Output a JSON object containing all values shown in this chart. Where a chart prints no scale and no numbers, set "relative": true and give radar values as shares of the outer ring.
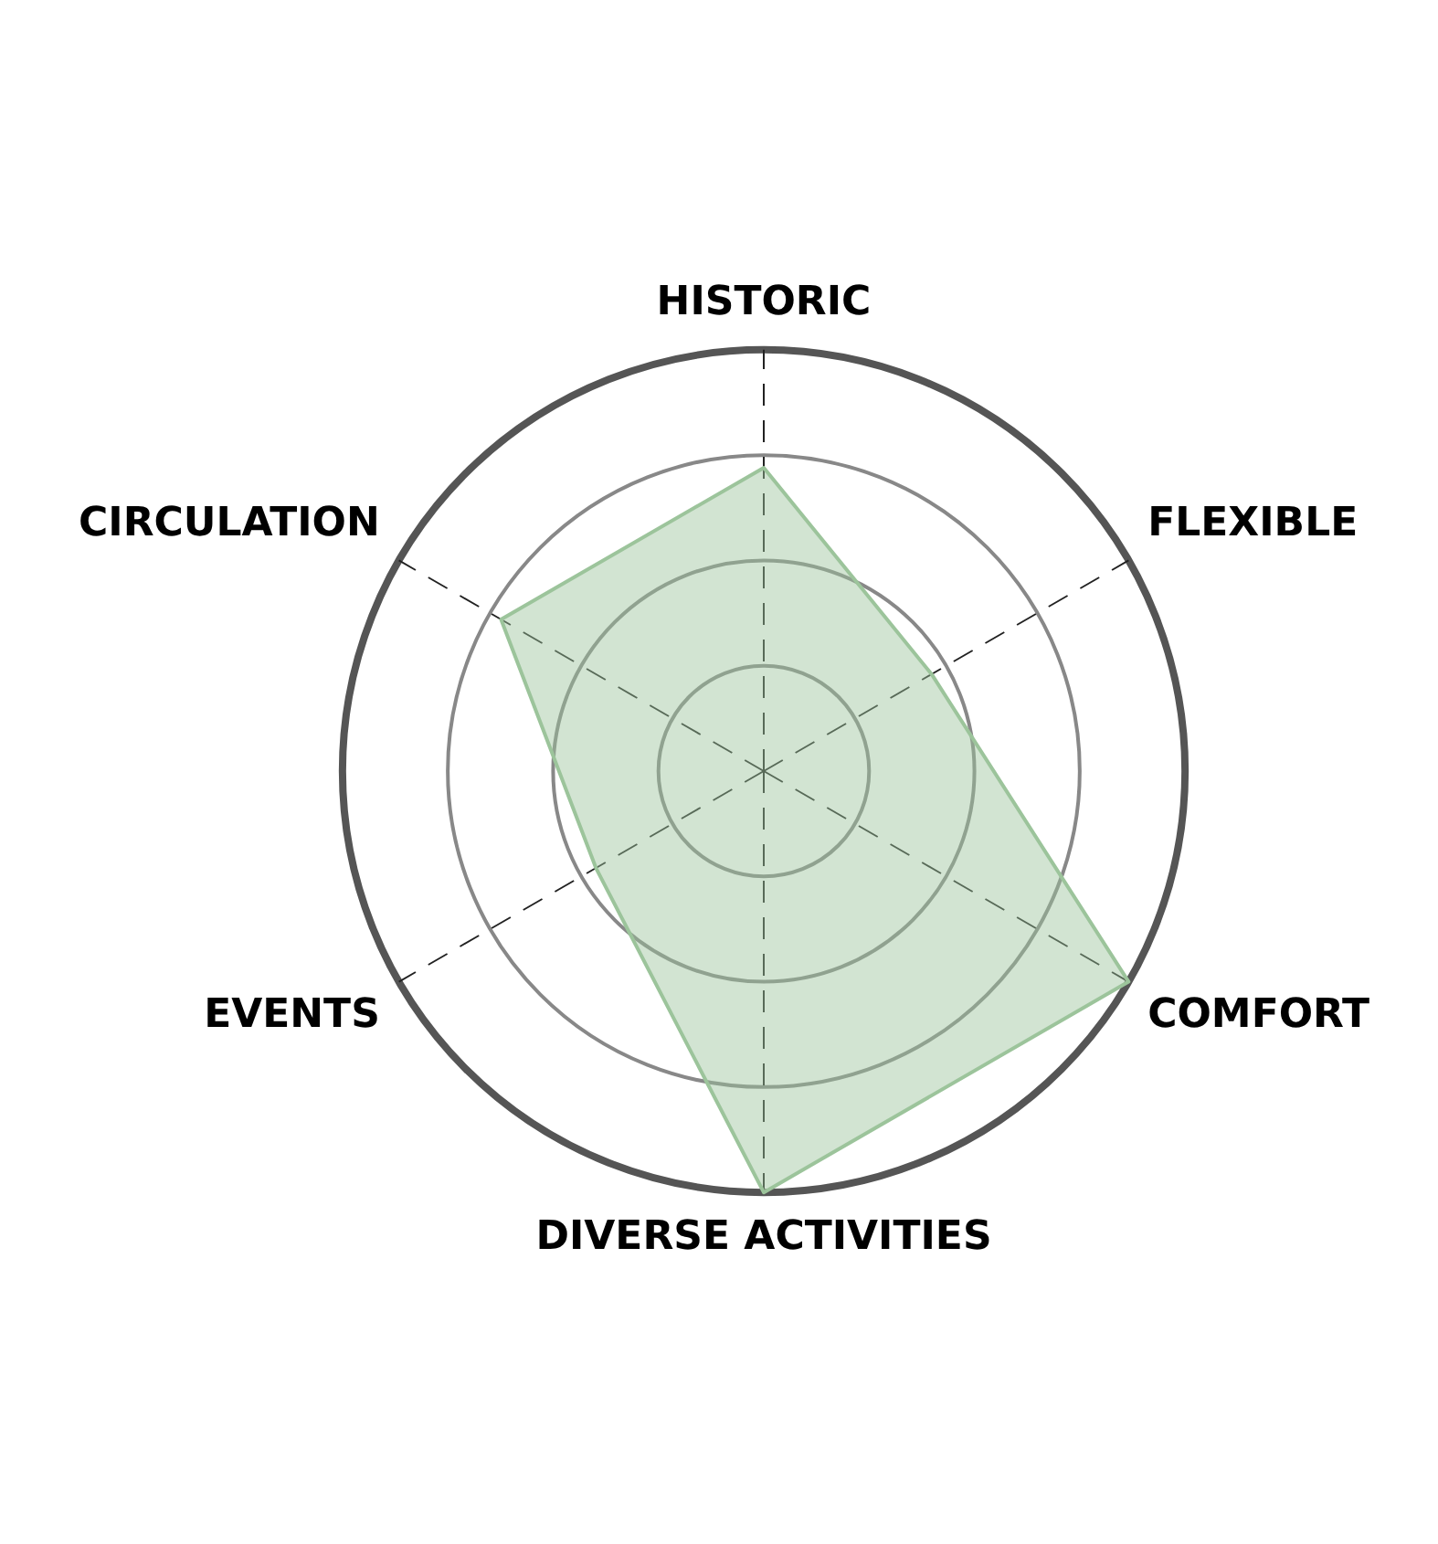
{
  "chart_data": {
    "type": "radar",
    "relative": true,
    "categories": [
      "HISTORIC",
      "FLEXIBLE",
      "COMFORT",
      "DIVERSE ACTIVITIES",
      "EVENTS",
      "CIRCULATION"
    ],
    "series": [
      {
        "color": "#9cc49b",
        "values": [
          0.72,
          0.46,
          1,
          1,
          0.46,
          0.72
        ]
      }
    ],
    "grid": true,
    "legend": false,
    "marker": "none"
  }
}
